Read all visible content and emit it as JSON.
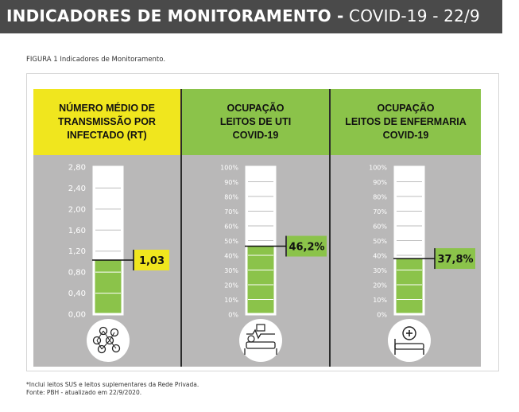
{
  "banner": {
    "title_bold": "INDICADORES DE MONITORAMENTO -",
    "title_light": "COVID-19 - 22/9"
  },
  "figure_caption": "FIGURA 1 Indicadores de Monitoramento.",
  "colors": {
    "rt_header": "#f0e61e",
    "green": "#8bc34a",
    "panel_bg": "#b9b8b8",
    "banner": "#4a4a4a"
  },
  "chart_data": [
    {
      "type": "gauge",
      "header": [
        "NÚMERO MÉDIO DE",
        "TRANSMISSÃO POR",
        "INFECTADO (RT)"
      ],
      "ticks": [
        "2,80",
        "2,40",
        "2,00",
        "1,60",
        "1,20",
        "0,80",
        "0,40",
        "0,00"
      ],
      "ylim": [
        0,
        2.8
      ],
      "value": 1.03,
      "value_label": "1,03",
      "icon": "virus-network-icon"
    },
    {
      "type": "gauge",
      "header": [
        "OCUPAÇÃO",
        "LEITOS DE UTI",
        "COVID-19"
      ],
      "ticks": [
        "100%",
        "90%",
        "80%",
        "70%",
        "60%",
        "50%",
        "40%",
        "30%",
        "20%",
        "10%",
        "0%"
      ],
      "ylim": [
        0,
        100
      ],
      "value": 46.2,
      "value_label": "46,2%",
      "icon": "icu-bed-icon"
    },
    {
      "type": "gauge",
      "header": [
        "OCUPAÇÃO",
        "LEITOS DE ENFERMARIA",
        "COVID-19"
      ],
      "ticks": [
        "100%",
        "90%",
        "80%",
        "70%",
        "60%",
        "50%",
        "40%",
        "30%",
        "20%",
        "10%",
        "0%"
      ],
      "ylim": [
        0,
        100
      ],
      "value": 37.8,
      "value_label": "37,8%",
      "icon": "ward-bed-icon"
    }
  ],
  "footnote": [
    "*Inclui leitos SUS e leitos suplementares da Rede Privada.",
    "Fonte: PBH - atualizado em 22/9/2020."
  ]
}
